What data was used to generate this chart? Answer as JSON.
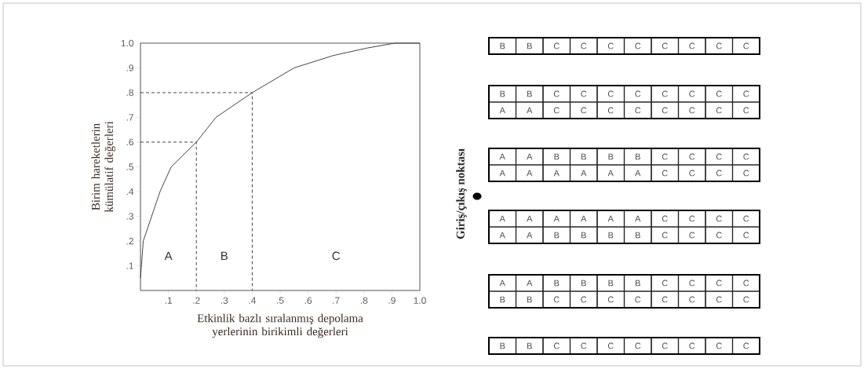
{
  "chart_data": [
    {
      "type": "line",
      "xlabel": "Etkinlik bazlı sıralanmış depolama yerlerinin birikimli değerleri",
      "ylabel": "Birim hareketlerin kümülatif değerleri",
      "xlim": [
        0,
        1
      ],
      "ylim": [
        0,
        1
      ],
      "xticks": [
        {
          "value": 0.1,
          "label": ".1"
        },
        {
          "value": 0.2,
          "label": ".2"
        },
        {
          "value": 0.3,
          "label": ".3"
        },
        {
          "value": 0.4,
          "label": ".4"
        },
        {
          "value": 0.5,
          "label": ".5"
        },
        {
          "value": 0.6,
          "label": ".6"
        },
        {
          "value": 0.7,
          "label": ".7"
        },
        {
          "value": 0.8,
          "label": ".8"
        },
        {
          "value": 0.9,
          "label": ".9"
        },
        {
          "value": 1.0,
          "label": "1.0"
        }
      ],
      "yticks": [
        {
          "value": 0.1,
          "label": ".1"
        },
        {
          "value": 0.2,
          "label": ".2"
        },
        {
          "value": 0.3,
          "label": ".3"
        },
        {
          "value": 0.4,
          "label": ".4"
        },
        {
          "value": 0.5,
          "label": ".5"
        },
        {
          "value": 0.6,
          "label": ".6"
        },
        {
          "value": 0.7,
          "label": ".7"
        },
        {
          "value": 0.8,
          "label": ".8"
        },
        {
          "value": 0.9,
          "label": ".9"
        },
        {
          "value": 1.0,
          "label": "1.0"
        }
      ],
      "line_style": "solid",
      "series": [
        {
          "color": "#444444",
          "x": [
            0,
            0.01,
            0.04,
            0.07,
            0.11,
            0.2,
            0.27,
            0.4,
            0.55,
            0.69,
            0.81,
            0.91,
            1.0
          ],
          "values": [
            0.05,
            0.2,
            0.3,
            0.4,
            0.5,
            0.6,
            0.7,
            0.8,
            0.9,
            0.95,
            0.98,
            1.0,
            1.0
          ]
        },
        {
          "color": "#444444",
          "line_style": "dashed",
          "x": [
            0,
            0.2,
            0.2
          ],
          "values": [
            0.6,
            0.6,
            0
          ]
        },
        {
          "color": "#444444",
          "line_style": "dashed",
          "x": [
            0,
            0.4,
            0.4
          ],
          "values": [
            0.8,
            0.8,
            0
          ]
        }
      ],
      "annotations": [
        "A",
        "B",
        "C"
      ]
    },
    {
      "type": "other",
      "annotations": [
        "Giriş/çıkış noktası",
        "B",
        "B",
        "C",
        "C",
        "C",
        "C",
        "C",
        "C",
        "C",
        "C",
        "B",
        "B",
        "C",
        "C",
        "C",
        "C",
        "C",
        "C",
        "C",
        "C",
        "A",
        "A",
        "C",
        "C",
        "C",
        "C",
        "C",
        "C",
        "C",
        "C",
        "A",
        "A",
        "B",
        "B",
        "B",
        "B",
        "C",
        "C",
        "C",
        "C",
        "A",
        "A",
        "A",
        "A",
        "A",
        "A",
        "C",
        "C",
        "C",
        "C",
        "A",
        "A",
        "A",
        "A",
        "A",
        "A",
        "C",
        "C",
        "C",
        "C",
        "A",
        "A",
        "B",
        "B",
        "B",
        "B",
        "C",
        "C",
        "C",
        "C",
        "A",
        "A",
        "B",
        "B",
        "B",
        "B",
        "C",
        "C",
        "C",
        "C",
        "B",
        "B",
        "C",
        "C",
        "C",
        "C",
        "C",
        "C",
        "C",
        "C",
        "B",
        "B",
        "C",
        "C",
        "C",
        "C",
        "C",
        "C",
        "C",
        "C"
      ]
    }
  ]
}
